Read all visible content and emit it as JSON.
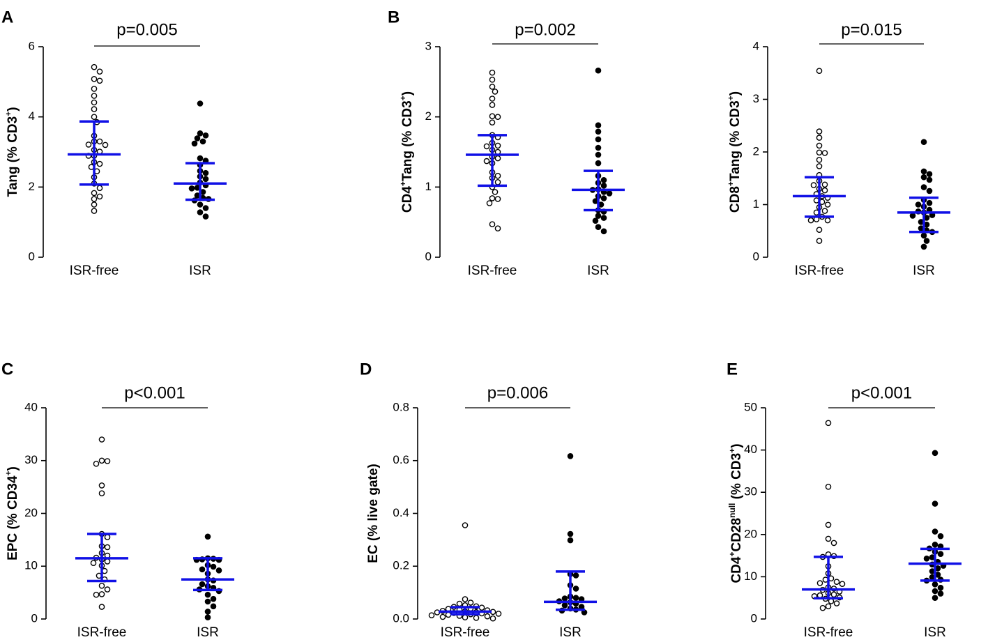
{
  "chart_data": [
    {
      "id": "tang",
      "type": "scatter",
      "panel_letter": "A",
      "ylabel": [
        {
          "t": "Tang (% CD3"
        },
        {
          "t": "+",
          "sup": true
        },
        {
          "t": ")"
        }
      ],
      "categories": [
        "ISR-free",
        "ISR"
      ],
      "ylim": [
        0,
        6
      ],
      "yticks": [
        {
          "v": 0,
          "label": "0"
        },
        {
          "v": 2,
          "label": "2"
        },
        {
          "v": 4,
          "label": "4"
        },
        {
          "v": 6,
          "label": "6"
        }
      ],
      "pvalue": "p=0.005",
      "colors": {
        "summary": "#1010e6",
        "isr_free": "#ffffff",
        "isr": "#000000"
      },
      "series": [
        {
          "name": "ISR-free",
          "marker": "open",
          "values": [
            5.42,
            5.29,
            5.08,
            5.03,
            4.8,
            4.6,
            4.41,
            4.22,
            4.0,
            3.85,
            3.46,
            3.3,
            3.3,
            3.21,
            3.2,
            3.06,
            3.01,
            2.89,
            2.89,
            2.71,
            2.66,
            2.57,
            2.45,
            2.28,
            2.1,
            1.97,
            1.83,
            1.73,
            1.66,
            1.5,
            1.32
          ],
          "center": 2.93,
          "error": [
            2.07,
            3.87
          ]
        },
        {
          "name": "ISR",
          "marker": "filled",
          "values": [
            4.38,
            3.53,
            3.47,
            3.39,
            3.3,
            3.24,
            2.82,
            2.75,
            2.63,
            2.46,
            2.4,
            2.3,
            2.23,
            2.13,
            2.05,
            1.98,
            1.96,
            1.86,
            1.76,
            1.69,
            1.66,
            1.62,
            1.5,
            1.4,
            1.28,
            1.16
          ],
          "center": 2.1,
          "error": [
            1.64,
            2.68
          ]
        }
      ]
    },
    {
      "id": "cd4tang",
      "type": "scatter",
      "panel_letter": "B",
      "ylabel": [
        {
          "t": "CD4"
        },
        {
          "t": "+",
          "sup": true
        },
        {
          "t": "Tang (% CD3"
        },
        {
          "t": "+",
          "sup": true
        },
        {
          "t": ")"
        }
      ],
      "categories": [
        "ISR-free",
        "ISR"
      ],
      "ylim": [
        0,
        3
      ],
      "yticks": [
        {
          "v": 0,
          "label": "0"
        },
        {
          "v": 1,
          "label": "1"
        },
        {
          "v": 2,
          "label": "2"
        },
        {
          "v": 3,
          "label": "3"
        }
      ],
      "pvalue": "p=0.002",
      "colors": {
        "summary": "#1010e6",
        "isr_free": "#ffffff",
        "isr": "#000000"
      },
      "series": [
        {
          "name": "ISR-free",
          "marker": "open",
          "values": [
            2.63,
            2.53,
            2.43,
            2.36,
            2.26,
            2.17,
            2.01,
            2.0,
            1.92,
            1.74,
            1.71,
            1.63,
            1.59,
            1.58,
            1.53,
            1.5,
            1.43,
            1.41,
            1.37,
            1.34,
            1.21,
            1.16,
            1.13,
            1.07,
            1.0,
            0.93,
            0.84,
            0.83,
            0.77,
            0.47,
            0.41
          ],
          "center": 1.46,
          "error": [
            1.02,
            1.74
          ]
        },
        {
          "name": "ISR",
          "marker": "filled",
          "values": [
            2.66,
            1.88,
            1.79,
            1.68,
            1.56,
            1.46,
            1.34,
            1.16,
            1.1,
            1.06,
            1.02,
            0.97,
            0.96,
            0.93,
            0.91,
            0.87,
            0.84,
            0.8,
            0.75,
            0.67,
            0.65,
            0.59,
            0.56,
            0.52,
            0.43,
            0.37
          ],
          "center": 0.96,
          "error": [
            0.67,
            1.23
          ]
        }
      ]
    },
    {
      "id": "cd8tang",
      "type": "scatter",
      "panel_letter": "",
      "ylabel": [
        {
          "t": "CD8"
        },
        {
          "t": "+",
          "sup": true
        },
        {
          "t": "Tang (% CD3"
        },
        {
          "t": "+",
          "sup": true
        },
        {
          "t": ")"
        }
      ],
      "categories": [
        "ISR-free",
        "ISR"
      ],
      "ylim": [
        0,
        4
      ],
      "yticks": [
        {
          "v": 0,
          "label": "0"
        },
        {
          "v": 1,
          "label": "1"
        },
        {
          "v": 2,
          "label": "2"
        },
        {
          "v": 3,
          "label": "3"
        },
        {
          "v": 4,
          "label": "4"
        }
      ],
      "pvalue": "p=0.015",
      "colors": {
        "summary": "#1010e6",
        "isr_free": "#ffffff",
        "isr": "#000000"
      },
      "series": [
        {
          "name": "ISR-free",
          "marker": "open",
          "values": [
            3.54,
            2.39,
            2.27,
            2.12,
            1.99,
            1.98,
            1.85,
            1.73,
            1.56,
            1.45,
            1.38,
            1.37,
            1.3,
            1.27,
            1.2,
            1.16,
            1.13,
            1.08,
            1.05,
            1.0,
            0.95,
            0.88,
            0.85,
            0.77,
            0.72,
            0.7,
            0.7,
            0.52,
            0.31
          ],
          "center": 1.16,
          "error": [
            0.77,
            1.52
          ]
        },
        {
          "name": "ISR",
          "marker": "filled",
          "values": [
            2.19,
            1.63,
            1.58,
            1.52,
            1.47,
            1.33,
            1.26,
            1.09,
            1.03,
            1.0,
            0.96,
            0.9,
            0.87,
            0.85,
            0.8,
            0.79,
            0.75,
            0.67,
            0.62,
            0.55,
            0.51,
            0.48,
            0.41,
            0.31,
            0.2
          ],
          "center": 0.85,
          "error": [
            0.48,
            1.13
          ]
        }
      ]
    },
    {
      "id": "epc",
      "type": "scatter",
      "panel_letter": "C",
      "ylabel": [
        {
          "t": "EPC (% CD34"
        },
        {
          "t": "+",
          "sup": true
        },
        {
          "t": ")"
        }
      ],
      "categories": [
        "ISR-free",
        "ISR"
      ],
      "ylim": [
        0,
        40
      ],
      "yticks": [
        {
          "v": 0,
          "label": "0"
        },
        {
          "v": 10,
          "label": "10"
        },
        {
          "v": 20,
          "label": "20"
        },
        {
          "v": 30,
          "label": "30"
        },
        {
          "v": 40,
          "label": "40"
        }
      ],
      "pvalue": "p<0.001",
      "colors": {
        "summary": "#1010e6",
        "isr_free": "#ffffff",
        "isr": "#000000"
      },
      "series": [
        {
          "name": "ISR-free",
          "marker": "open",
          "values": [
            34.0,
            30.0,
            29.9,
            29.4,
            25.3,
            23.8,
            16.1,
            15.5,
            13.8,
            13.6,
            12.5,
            12.0,
            11.6,
            11.3,
            10.9,
            10.6,
            10.1,
            9.1,
            8.2,
            7.5,
            6.3,
            5.6,
            4.7,
            4.6,
            2.3
          ],
          "center": 11.5,
          "error": [
            7.2,
            16.1
          ]
        },
        {
          "name": "ISR",
          "marker": "filled",
          "values": [
            15.6,
            11.5,
            11.4,
            11.3,
            11.2,
            11.2,
            10.2,
            9.9,
            9.4,
            9.2,
            8.6,
            7.5,
            7.3,
            6.6,
            6.2,
            5.9,
            5.6,
            5.3,
            4.6,
            3.8,
            3.3,
            2.4,
            1.4,
            0.3
          ],
          "center": 7.5,
          "error": [
            5.5,
            11.5
          ]
        }
      ]
    },
    {
      "id": "ec",
      "type": "scatter",
      "panel_letter": "D",
      "ylabel": [
        {
          "t": "EC (% live gate)"
        }
      ],
      "categories": [
        "ISR-free",
        "ISR"
      ],
      "ylim": [
        0,
        0.8
      ],
      "yticks": [
        {
          "v": 0,
          "label": "0.0"
        },
        {
          "v": 0.2,
          "label": "0.2"
        },
        {
          "v": 0.4,
          "label": "0.4"
        },
        {
          "v": 0.6,
          "label": "0.6"
        },
        {
          "v": 0.8,
          "label": "0.8"
        }
      ],
      "pvalue": "p=0.006",
      "colors": {
        "summary": "#1010e6",
        "isr_free": "#ffffff",
        "isr": "#000000"
      },
      "series": [
        {
          "name": "ISR-free",
          "marker": "open",
          "values": [
            0.355,
            0.075,
            0.062,
            0.058,
            0.052,
            0.048,
            0.046,
            0.043,
            0.04,
            0.038,
            0.035,
            0.033,
            0.031,
            0.029,
            0.027,
            0.026,
            0.025,
            0.023,
            0.021,
            0.02,
            0.018,
            0.016,
            0.014,
            0.012,
            0.01,
            0.008,
            0.006,
            0.004,
            0.002
          ],
          "center": 0.028,
          "error": [
            0.018,
            0.045
          ]
        },
        {
          "name": "ISR",
          "marker": "filled",
          "values": [
            0.617,
            0.322,
            0.298,
            0.17,
            0.165,
            0.128,
            0.115,
            0.085,
            0.08,
            0.078,
            0.075,
            0.067,
            0.063,
            0.058,
            0.052,
            0.046,
            0.04,
            0.036,
            0.032,
            0.025
          ],
          "center": 0.065,
          "error": [
            0.035,
            0.18
          ]
        }
      ]
    },
    {
      "id": "cd28null",
      "type": "scatter",
      "panel_letter": "E",
      "ylabel": [
        {
          "t": "CD4"
        },
        {
          "t": "+",
          "sup": true
        },
        {
          "t": "CD28"
        },
        {
          "t": "null",
          "sup": true
        },
        {
          "t": " (% CD3"
        },
        {
          "t": "+",
          "sup": true
        },
        {
          "t": ")"
        }
      ],
      "categories": [
        "ISR-free",
        "ISR"
      ],
      "ylim": [
        0,
        50
      ],
      "yticks": [
        {
          "v": 0,
          "label": "0"
        },
        {
          "v": 10,
          "label": "10"
        },
        {
          "v": 20,
          "label": "20"
        },
        {
          "v": 30,
          "label": "30"
        },
        {
          "v": 40,
          "label": "40"
        },
        {
          "v": 50,
          "label": "50"
        }
      ],
      "pvalue": "p<0.001",
      "colors": {
        "summary": "#1010e6",
        "isr_free": "#ffffff",
        "isr": "#000000"
      },
      "series": [
        {
          "name": "ISR-free",
          "marker": "open",
          "values": [
            46.4,
            31.3,
            22.3,
            19.0,
            18.0,
            15.3,
            14.9,
            14.7,
            12.5,
            10.8,
            9.6,
            9.3,
            8.8,
            8.5,
            8.3,
            7.5,
            7.2,
            6.9,
            6.5,
            6.1,
            5.8,
            5.6,
            5.4,
            5.1,
            4.8,
            4.2,
            3.7,
            3.0,
            2.6
          ],
          "center": 7.0,
          "error": [
            4.9,
            14.7
          ]
        },
        {
          "name": "ISR",
          "marker": "filled",
          "values": [
            39.3,
            27.3,
            20.7,
            19.6,
            17.6,
            17.2,
            16.7,
            15.9,
            15.4,
            14.6,
            14.3,
            13.5,
            12.9,
            12.6,
            12.0,
            11.3,
            10.5,
            9.9,
            9.3,
            9.1,
            8.2,
            7.4,
            6.6,
            6.0,
            5.0
          ],
          "center": 13.1,
          "error": [
            9.1,
            16.6
          ]
        }
      ]
    }
  ]
}
